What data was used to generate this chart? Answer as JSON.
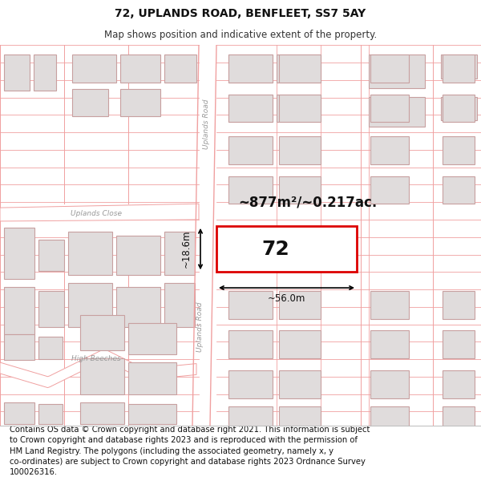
{
  "title": "72, UPLANDS ROAD, BENFLEET, SS7 5AY",
  "subtitle": "Map shows position and indicative extent of the property.",
  "footer": "Contains OS data © Crown copyright and database right 2021. This information is subject\nto Crown copyright and database rights 2023 and is reproduced with the permission of\nHM Land Registry. The polygons (including the associated geometry, namely x, y\nco-ordinates) are subject to Crown copyright and database rights 2023 Ordnance Survey\n100026316.",
  "bg_color": "#ffffff",
  "map_bg": "#ffffff",
  "road_line_color": "#f0a0a0",
  "road_fill": "#ffffff",
  "building_fill": "#e0dcdc",
  "building_edge": "#c8a0a0",
  "highlight_fill": "#ffffff",
  "highlight_edge": "#dd0000",
  "label_72": "72",
  "area_label": "~877m²/~0.217ac.",
  "width_label": "~56.0m",
  "height_label": "~18.6m",
  "road_label_1": "Uplands Road",
  "road_label_2": "Uplands Close",
  "road_label_3": "High Beeches",
  "road_gray": "#aaaaaa",
  "title_fontsize": 10,
  "subtitle_fontsize": 8.5,
  "footer_fontsize": 7.2
}
